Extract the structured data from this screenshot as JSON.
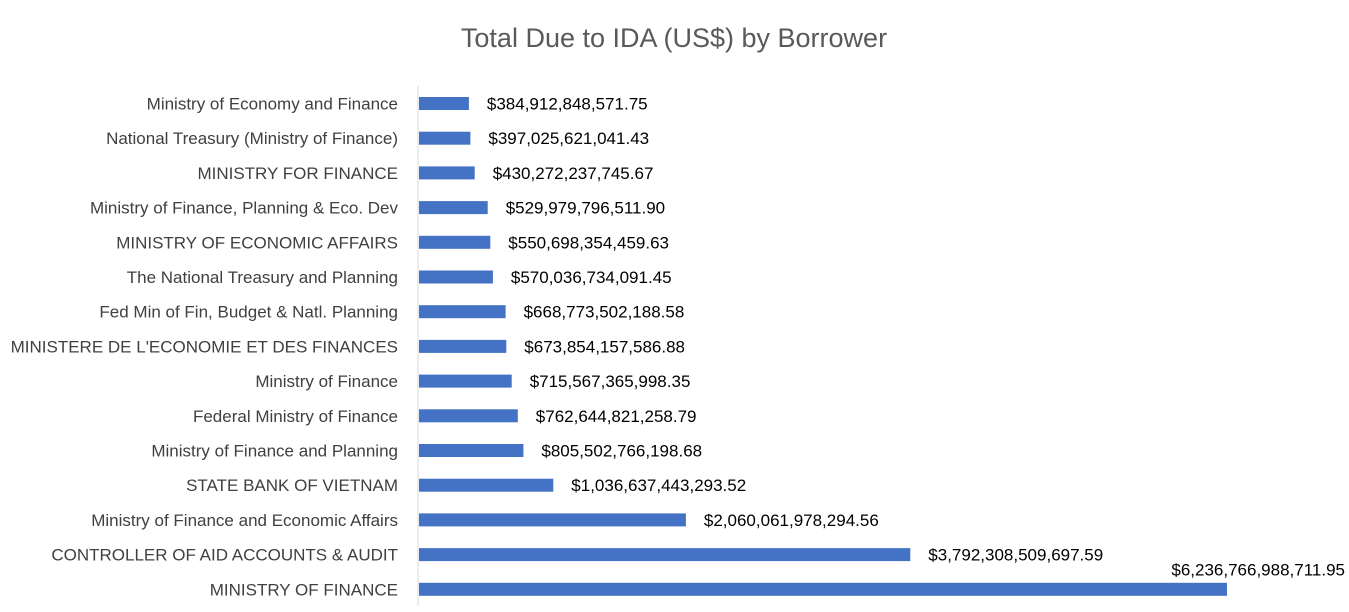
{
  "chart_data": {
    "type": "bar",
    "orientation": "horizontal",
    "title": "Total Due to IDA (US$) by Borrower",
    "xlabel": "",
    "ylabel": "",
    "grid": false,
    "legend": "none",
    "bar_color": "#4472C4",
    "xlim": [
      0,
      6236766988711.95
    ],
    "categories": [
      "Ministry of Economy and Finance",
      "National Treasury  (Ministry of Finance)",
      "MINISTRY FOR FINANCE",
      "Ministry of Finance, Planning & Eco. Dev",
      "MINISTRY OF ECONOMIC AFFAIRS",
      "The National Treasury and Planning",
      "Fed Min of Fin, Budget & Natl. Planning",
      "MINISTERE DE L'ECONOMIE ET DES FINANCES",
      "Ministry of Finance",
      "Federal Ministry of Finance",
      "Ministry of Finance and Planning",
      "STATE BANK OF VIETNAM",
      "Ministry of Finance and Economic Affairs",
      "CONTROLLER OF AID ACCOUNTS & AUDIT",
      "MINISTRY OF FINANCE"
    ],
    "values": [
      384912848571.75,
      397025621041.43,
      430272237745.67,
      529979796511.9,
      550698354459.63,
      570036734091.45,
      668773502188.58,
      673854157586.88,
      715567365998.35,
      762644821258.79,
      805502766198.68,
      1036637443293.52,
      2060061978294.56,
      3792308509697.59,
      6236766988711.95
    ],
    "value_labels": [
      "$384,912,848,571.75",
      "$397,025,621,041.43",
      "$430,272,237,745.67",
      "$529,979,796,511.90",
      "$550,698,354,459.63",
      "$570,036,734,091.45",
      "$668,773,502,188.58",
      "$673,854,157,586.88",
      "$715,567,365,998.35",
      "$762,644,821,258.79",
      "$805,502,766,198.68",
      "$1,036,637,443,293.52",
      "$2,060,061,978,294.56",
      "$3,792,308,509,697.59",
      "$6,236,766,988,711.95"
    ]
  }
}
